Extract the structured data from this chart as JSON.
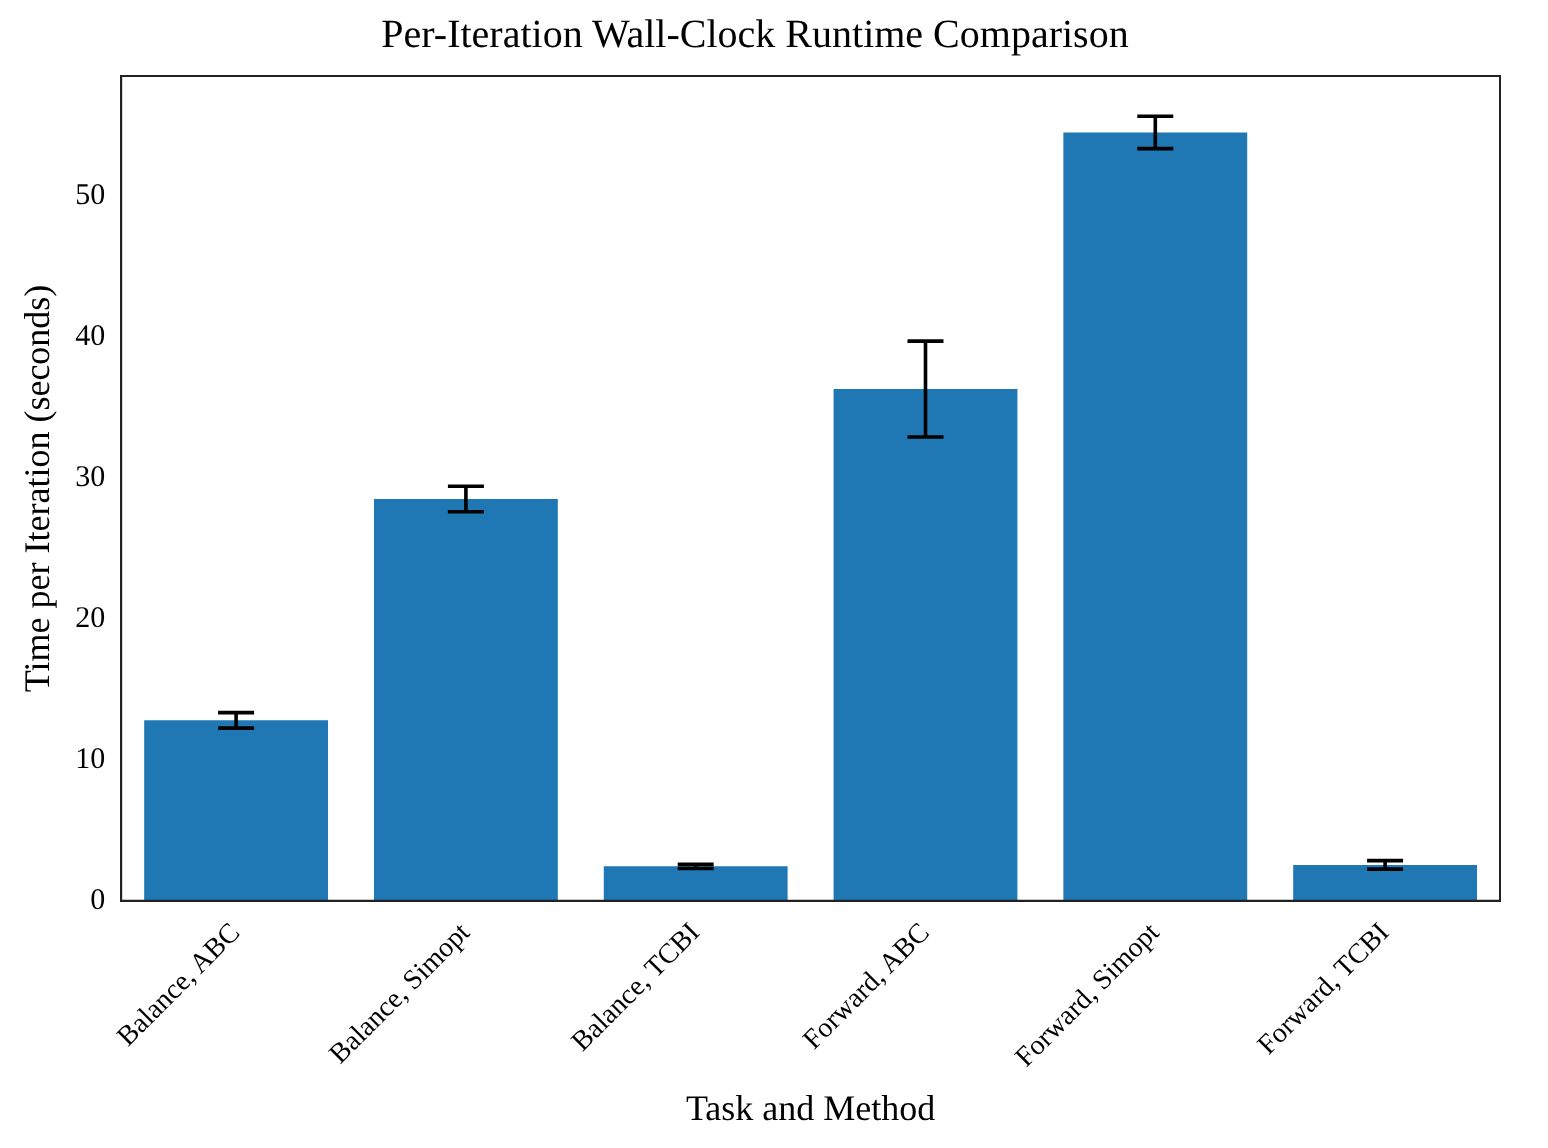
{
  "chart_data": {
    "type": "bar",
    "title": "Per-Iteration Wall-Clock Runtime Comparison",
    "xlabel": "Task and Method",
    "ylabel": "Time per Iteration (seconds)",
    "categories": [
      "Balance, ABC",
      "Balance, Simopt",
      "Balance, TCBI",
      "Forward, ABC",
      "Forward, Simopt",
      "Forward, TCBI"
    ],
    "values": [
      12.8,
      28.5,
      2.45,
      36.3,
      54.5,
      2.55
    ],
    "errors": [
      0.55,
      0.9,
      0.15,
      3.4,
      1.15,
      0.3
    ],
    "color": "#1f77b4",
    "ylim": [
      0,
      58.5
    ],
    "yticks": [
      0,
      10,
      20,
      30,
      40,
      50
    ],
    "grid": false,
    "legend": false
  }
}
